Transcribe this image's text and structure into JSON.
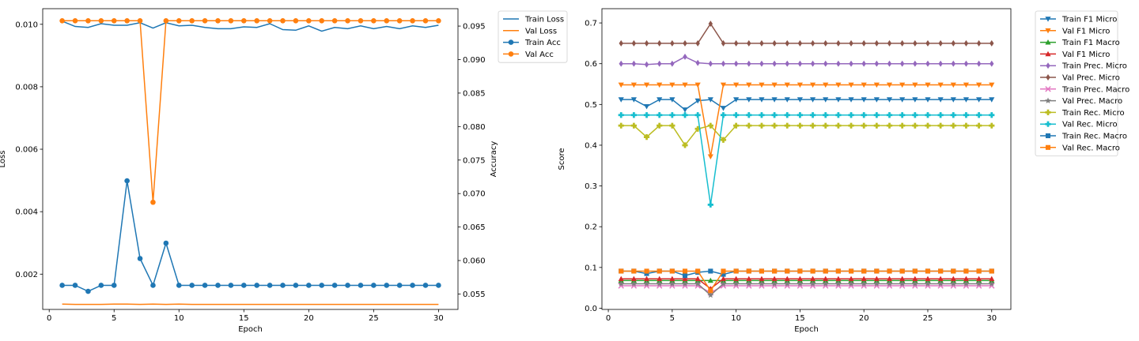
{
  "chart_data": [
    {
      "type": "line",
      "xlabel": "Epoch",
      "ylabel": "Loss",
      "y2label": "Accuracy",
      "xlim": [
        -0.5,
        31.5
      ],
      "ylim": [
        0.00087,
        0.0105
      ],
      "y2lim": [
        0.0527,
        0.0976
      ],
      "xticks": [
        0,
        5,
        10,
        15,
        20,
        25,
        30
      ],
      "yticks": [
        0.002,
        0.004,
        0.006,
        0.008,
        0.01
      ],
      "ytick_labels": [
        "0.002",
        "0.004",
        "0.006",
        "0.008",
        "0.010"
      ],
      "y2ticks": [
        0.055,
        0.06,
        0.065,
        0.07,
        0.075,
        0.08,
        0.085,
        0.09,
        0.095
      ],
      "y2tick_labels": [
        "0.055",
        "0.060",
        "0.065",
        "0.070",
        "0.075",
        "0.080",
        "0.085",
        "0.090",
        "0.095"
      ],
      "legend_position": "outside-top-right",
      "x": [
        1,
        2,
        3,
        4,
        5,
        6,
        7,
        8,
        9,
        10,
        11,
        12,
        13,
        14,
        15,
        16,
        17,
        18,
        19,
        20,
        21,
        22,
        23,
        24,
        25,
        26,
        27,
        28,
        29,
        30
      ],
      "series": [
        {
          "name": "Train Loss",
          "axis": "left",
          "color": "#1f77b4",
          "marker": "none",
          "values": [
            0.0101,
            0.00993,
            0.0099,
            0.01002,
            0.00997,
            0.00997,
            0.01005,
            0.00988,
            0.01005,
            0.00995,
            0.00997,
            0.0099,
            0.00986,
            0.00986,
            0.00992,
            0.0099,
            0.01002,
            0.00983,
            0.00981,
            0.00995,
            0.00978,
            0.0099,
            0.00986,
            0.00995,
            0.00986,
            0.00993,
            0.00986,
            0.00995,
            0.0099,
            0.00997
          ]
        },
        {
          "name": "Val Loss",
          "axis": "left",
          "color": "#ff7f0e",
          "marker": "none",
          "values": [
            0.00104,
            0.00103,
            0.00103,
            0.00103,
            0.00104,
            0.00104,
            0.00103,
            0.00104,
            0.00103,
            0.00104,
            0.00103,
            0.00103,
            0.00103,
            0.00103,
            0.00103,
            0.00103,
            0.00103,
            0.00103,
            0.00103,
            0.00103,
            0.00103,
            0.00103,
            0.00103,
            0.00103,
            0.00103,
            0.00103,
            0.00103,
            0.00103,
            0.00103,
            0.00103
          ]
        },
        {
          "name": "Train Acc",
          "axis": "right",
          "color": "#1f77b4",
          "marker": "o",
          "values": [
            0.0563,
            0.0563,
            0.0554,
            0.0563,
            0.0563,
            0.0719,
            0.0603,
            0.0563,
            0.0626,
            0.0563,
            0.0563,
            0.0563,
            0.0563,
            0.0563,
            0.0563,
            0.0563,
            0.0563,
            0.0563,
            0.0563,
            0.0563,
            0.0563,
            0.0563,
            0.0563,
            0.0563,
            0.0563,
            0.0563,
            0.0563,
            0.0563,
            0.0563,
            0.0563
          ]
        },
        {
          "name": "Val Acc",
          "axis": "right",
          "color": "#ff7f0e",
          "marker": "o",
          "values": [
            0.0958,
            0.0958,
            0.0958,
            0.0958,
            0.0958,
            0.0958,
            0.0958,
            0.0687,
            0.0958,
            0.0958,
            0.0958,
            0.0958,
            0.0958,
            0.0958,
            0.0958,
            0.0958,
            0.0958,
            0.0958,
            0.0958,
            0.0958,
            0.0958,
            0.0958,
            0.0958,
            0.0958,
            0.0958,
            0.0958,
            0.0958,
            0.0958,
            0.0958,
            0.0958
          ]
        }
      ]
    },
    {
      "type": "line",
      "xlabel": "Epoch",
      "ylabel": "Score",
      "xlim": [
        -0.5,
        31.5
      ],
      "ylim": [
        -0.003,
        0.735
      ],
      "xticks": [
        0,
        5,
        10,
        15,
        20,
        25,
        30
      ],
      "yticks": [
        0.0,
        0.1,
        0.2,
        0.3,
        0.4,
        0.5,
        0.6,
        0.7
      ],
      "ytick_labels": [
        "0.0",
        "0.1",
        "0.2",
        "0.3",
        "0.4",
        "0.5",
        "0.6",
        "0.7"
      ],
      "legend_position": "outside-top-right",
      "x": [
        1,
        2,
        3,
        4,
        5,
        6,
        7,
        8,
        9,
        10,
        11,
        12,
        13,
        14,
        15,
        16,
        17,
        18,
        19,
        20,
        21,
        22,
        23,
        24,
        25,
        26,
        27,
        28,
        29,
        30
      ],
      "series": [
        {
          "name": "Train F1 Micro",
          "color": "#1f77b4",
          "marker": "v",
          "values": [
            0.512,
            0.512,
            0.495,
            0.512,
            0.512,
            0.487,
            0.509,
            0.512,
            0.491,
            0.512,
            0.512,
            0.512,
            0.512,
            0.512,
            0.512,
            0.512,
            0.512,
            0.512,
            0.512,
            0.512,
            0.512,
            0.512,
            0.512,
            0.512,
            0.512,
            0.512,
            0.512,
            0.512,
            0.512,
            0.512
          ]
        },
        {
          "name": "Val F1 Micro",
          "color": "#ff7f0e",
          "marker": "v",
          "values": [
            0.548,
            0.548,
            0.548,
            0.548,
            0.548,
            0.548,
            0.548,
            0.372,
            0.548,
            0.548,
            0.548,
            0.548,
            0.548,
            0.548,
            0.548,
            0.548,
            0.548,
            0.548,
            0.548,
            0.548,
            0.548,
            0.548,
            0.548,
            0.548,
            0.548,
            0.548,
            0.548,
            0.548,
            0.548,
            0.548
          ]
        },
        {
          "name": "Train F1 Macro",
          "color": "#2ca02c",
          "marker": "^",
          "values": [
            0.068,
            0.068,
            0.068,
            0.068,
            0.068,
            0.068,
            0.068,
            0.068,
            0.068,
            0.068,
            0.068,
            0.068,
            0.068,
            0.068,
            0.068,
            0.068,
            0.068,
            0.068,
            0.068,
            0.068,
            0.068,
            0.068,
            0.068,
            0.068,
            0.068,
            0.068,
            0.068,
            0.068,
            0.068,
            0.068
          ]
        },
        {
          "name": "Val F1 Micro",
          "color": "#d62728",
          "marker": "^",
          "values": [
            0.072,
            0.072,
            0.072,
            0.072,
            0.072,
            0.072,
            0.072,
            0.048,
            0.072,
            0.072,
            0.072,
            0.072,
            0.072,
            0.072,
            0.072,
            0.072,
            0.072,
            0.072,
            0.072,
            0.072,
            0.072,
            0.072,
            0.072,
            0.072,
            0.072,
            0.072,
            0.072,
            0.072,
            0.072,
            0.072
          ]
        },
        {
          "name": "Train Prec. Micro",
          "color": "#9467bd",
          "marker": "d",
          "values": [
            0.6,
            0.6,
            0.598,
            0.6,
            0.6,
            0.617,
            0.602,
            0.6,
            0.6,
            0.6,
            0.6,
            0.6,
            0.6,
            0.6,
            0.6,
            0.6,
            0.6,
            0.6,
            0.6,
            0.6,
            0.6,
            0.6,
            0.6,
            0.6,
            0.6,
            0.6,
            0.6,
            0.6,
            0.6,
            0.6
          ]
        },
        {
          "name": "Val Prec. Micro",
          "color": "#8c564b",
          "marker": "d",
          "values": [
            0.65,
            0.65,
            0.65,
            0.65,
            0.65,
            0.65,
            0.65,
            0.698,
            0.65,
            0.65,
            0.65,
            0.65,
            0.65,
            0.65,
            0.65,
            0.65,
            0.65,
            0.65,
            0.65,
            0.65,
            0.65,
            0.65,
            0.65,
            0.65,
            0.65,
            0.65,
            0.65,
            0.65,
            0.65,
            0.65
          ]
        },
        {
          "name": "Train Prec. Macro",
          "color": "#e377c2",
          "marker": "x",
          "values": [
            0.055,
            0.055,
            0.055,
            0.055,
            0.055,
            0.055,
            0.055,
            0.038,
            0.055,
            0.055,
            0.055,
            0.055,
            0.055,
            0.055,
            0.055,
            0.055,
            0.055,
            0.055,
            0.055,
            0.055,
            0.055,
            0.055,
            0.055,
            0.055,
            0.055,
            0.055,
            0.055,
            0.055,
            0.055,
            0.055
          ]
        },
        {
          "name": "Val Prec. Macro",
          "color": "#7f7f7f",
          "marker": "*",
          "values": [
            0.06,
            0.06,
            0.06,
            0.06,
            0.06,
            0.06,
            0.06,
            0.032,
            0.06,
            0.06,
            0.06,
            0.06,
            0.06,
            0.06,
            0.06,
            0.06,
            0.06,
            0.06,
            0.06,
            0.06,
            0.06,
            0.06,
            0.06,
            0.06,
            0.06,
            0.06,
            0.06,
            0.06,
            0.06,
            0.06
          ]
        },
        {
          "name": "Train Rec. Micro",
          "color": "#bcbd22",
          "marker": "P",
          "values": [
            0.448,
            0.448,
            0.42,
            0.448,
            0.448,
            0.4,
            0.44,
            0.448,
            0.413,
            0.448,
            0.448,
            0.448,
            0.448,
            0.448,
            0.448,
            0.448,
            0.448,
            0.448,
            0.448,
            0.448,
            0.448,
            0.448,
            0.448,
            0.448,
            0.448,
            0.448,
            0.448,
            0.448,
            0.448,
            0.448
          ]
        },
        {
          "name": "Val Rec. Micro",
          "color": "#17becf",
          "marker": "P",
          "values": [
            0.474,
            0.474,
            0.474,
            0.474,
            0.474,
            0.474,
            0.474,
            0.254,
            0.474,
            0.474,
            0.474,
            0.474,
            0.474,
            0.474,
            0.474,
            0.474,
            0.474,
            0.474,
            0.474,
            0.474,
            0.474,
            0.474,
            0.474,
            0.474,
            0.474,
            0.474,
            0.474,
            0.474,
            0.474,
            0.474
          ]
        },
        {
          "name": "Train Rec. Macro",
          "color": "#1f77b4",
          "marker": "s",
          "values": [
            0.091,
            0.091,
            0.085,
            0.091,
            0.091,
            0.08,
            0.088,
            0.091,
            0.083,
            0.091,
            0.091,
            0.091,
            0.091,
            0.091,
            0.091,
            0.091,
            0.091,
            0.091,
            0.091,
            0.091,
            0.091,
            0.091,
            0.091,
            0.091,
            0.091,
            0.091,
            0.091,
            0.091,
            0.091,
            0.091
          ]
        },
        {
          "name": "Val Rec. Macro",
          "color": "#ff7f0e",
          "marker": "s",
          "values": [
            0.091,
            0.091,
            0.091,
            0.091,
            0.091,
            0.091,
            0.091,
            0.043,
            0.091,
            0.091,
            0.091,
            0.091,
            0.091,
            0.091,
            0.091,
            0.091,
            0.091,
            0.091,
            0.091,
            0.091,
            0.091,
            0.091,
            0.091,
            0.091,
            0.091,
            0.091,
            0.091,
            0.091,
            0.091,
            0.091
          ]
        }
      ]
    }
  ]
}
